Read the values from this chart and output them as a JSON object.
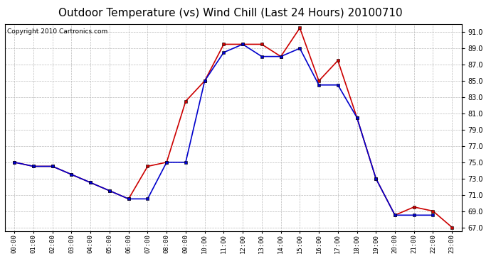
{
  "title": "Outdoor Temperature (vs) Wind Chill (Last 24 Hours) 20100710",
  "copyright": "Copyright 2010 Cartronics.com",
  "hours": [
    "00:00",
    "01:00",
    "02:00",
    "03:00",
    "04:00",
    "05:00",
    "06:00",
    "07:00",
    "08:00",
    "09:00",
    "10:00",
    "11:00",
    "12:00",
    "13:00",
    "14:00",
    "15:00",
    "16:00",
    "17:00",
    "18:00",
    "19:00",
    "20:00",
    "21:00",
    "22:00",
    "23:00"
  ],
  "temp": [
    75.0,
    74.5,
    74.5,
    73.5,
    72.5,
    71.5,
    70.5,
    74.5,
    75.0,
    82.5,
    85.0,
    89.5,
    89.5,
    89.5,
    88.0,
    91.5,
    85.0,
    87.5,
    80.5,
    73.0,
    68.5,
    69.5,
    69.0,
    67.0
  ],
  "wind_chill": [
    75.0,
    74.5,
    74.5,
    73.5,
    72.5,
    71.5,
    70.5,
    70.5,
    75.0,
    75.0,
    85.0,
    88.5,
    89.5,
    88.0,
    88.0,
    89.0,
    84.5,
    84.5,
    80.5,
    73.0,
    68.5,
    68.5,
    68.5,
    null
  ],
  "temp_color": "#cc0000",
  "wind_chill_color": "#0000cc",
  "bg_color": "#ffffff",
  "grid_color": "#bbbbbb",
  "ylim_min": 66.5,
  "ylim_max": 92.0,
  "yticks": [
    67.0,
    69.0,
    71.0,
    73.0,
    75.0,
    77.0,
    79.0,
    81.0,
    83.0,
    85.0,
    87.0,
    89.0,
    91.0
  ],
  "title_fontsize": 11,
  "copyright_fontsize": 6.5,
  "marker": "s",
  "marker_size": 2.5,
  "line_width": 1.2
}
